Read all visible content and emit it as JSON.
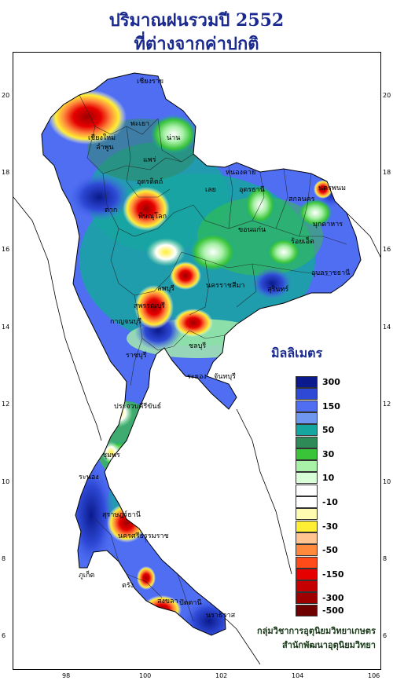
{
  "title": {
    "line1": "ปริมาณฝนรวมปี  2552",
    "line2": "ที่ต่างจากค่าปกติ"
  },
  "axes": {
    "top_ticks": [
      "98",
      "100",
      "102",
      "104",
      "106"
    ],
    "left_ticks": [
      "20",
      "18",
      "16",
      "14",
      "12",
      "10",
      "8",
      "6"
    ],
    "right_ticks": [
      "20",
      "18",
      "16",
      "14",
      "12",
      "10",
      "8",
      "6"
    ]
  },
  "legend": {
    "title": "มิลลิเมตร",
    "items": [
      {
        "label": "300",
        "color": "#0b1a8c"
      },
      {
        "label": "",
        "color": "#2e49d6"
      },
      {
        "label": "150",
        "color": "#4f6ef2"
      },
      {
        "label": "",
        "color": "#6f97f0"
      },
      {
        "label": "50",
        "color": "#16a6a0"
      },
      {
        "label": "",
        "color": "#2e8b57"
      },
      {
        "label": "30",
        "color": "#39c43a"
      },
      {
        "label": "",
        "color": "#a9f0a9"
      },
      {
        "label": "10",
        "color": "#d9ffd9"
      },
      {
        "label": "",
        "color": "#ffffff"
      },
      {
        "label": "-10",
        "color": "#ffffff"
      },
      {
        "label": "",
        "color": "#fffbb0"
      },
      {
        "label": "-30",
        "color": "#ffee33"
      },
      {
        "label": "",
        "color": "#ffc490"
      },
      {
        "label": "-50",
        "color": "#ff8a3d"
      },
      {
        "label": "",
        "color": "#ff4a1a"
      },
      {
        "label": "-150",
        "color": "#e60000"
      },
      {
        "label": "",
        "color": "#c40000"
      },
      {
        "label": "-300",
        "color": "#9e0000"
      },
      {
        "label": "-500",
        "color": "#6e0000"
      }
    ]
  },
  "places": [
    {
      "name": "เชียงราย",
      "text": "เชียงราย"
    },
    {
      "name": "เชียงใหม่",
      "text": "เชียงใหม่"
    },
    {
      "name": "น่าน",
      "text": "น่าน"
    },
    {
      "name": "พะเยา",
      "text": "พะเยา"
    },
    {
      "name": "แพร่",
      "text": "แพร่"
    },
    {
      "name": "ลำพูน",
      "text": "ลำพูน"
    },
    {
      "name": "อุตรดิตถ์",
      "text": "อุตรดิตถ์"
    },
    {
      "name": "ตาก",
      "text": "ตาก"
    },
    {
      "name": "พิษณุโลก",
      "text": "พิษณุโลก"
    },
    {
      "name": "หนองคาย",
      "text": "หนองคาย"
    },
    {
      "name": "เลย",
      "text": "เลย"
    },
    {
      "name": "อุดรธานี",
      "text": "อุดรธานี"
    },
    {
      "name": "นครพนม",
      "text": "นครพนม"
    },
    {
      "name": "สกลนคร",
      "text": "สกลนคร"
    },
    {
      "name": "มุกดาหาร",
      "text": "มุกดาหาร"
    },
    {
      "name": "ขอนแก่น",
      "text": "ขอนแก่น"
    },
    {
      "name": "ร้อยเอ็ด",
      "text": "ร้อยเอ็ด"
    },
    {
      "name": "อุบลราชธานี",
      "text": "อุบลราชธานี"
    },
    {
      "name": "นครราชสีมา",
      "text": "นครราชสีมา"
    },
    {
      "name": "สุรินทร์",
      "text": "สุรินทร์"
    },
    {
      "name": "ลพบุรี",
      "text": "ลพบุรี"
    },
    {
      "name": "สุพรรณบุรี",
      "text": "สุพรรณบุรี"
    },
    {
      "name": "กาญจนบุรี",
      "text": "กาญจนบุรี"
    },
    {
      "name": "ราชบุรี",
      "text": "ราชบุรี"
    },
    {
      "name": "ชลบุรี",
      "text": "ชลบุรี"
    },
    {
      "name": "ระยอง",
      "text": "ระยอง"
    },
    {
      "name": "จันทบุรี",
      "text": "จันทบุรี"
    },
    {
      "name": "ประจวบคีรีขันธ์",
      "text": "ประจวบคีรีขันธ์"
    },
    {
      "name": "ชุมพร",
      "text": "ชุมพร"
    },
    {
      "name": "ระนอง",
      "text": "ระนอง"
    },
    {
      "name": "สุราษฎร์ธานี",
      "text": "สุราษฎร์ธานี"
    },
    {
      "name": "นครศรีธรรมราช",
      "text": "นครศรีธรรมราช"
    },
    {
      "name": "ภูเก็ต",
      "text": "ภูเก็ต"
    },
    {
      "name": "ตรัง",
      "text": "ตรัง"
    },
    {
      "name": "สงขลา",
      "text": "สงขลา"
    },
    {
      "name": "ปัตตานี",
      "text": "ปัตตานี"
    },
    {
      "name": "นราธิวาส",
      "text": "นราธิวาส"
    }
  ],
  "footer": {
    "line1": "กลุ่มวิชาการอุตุนิยมวิทยาเกษตร",
    "line2": "สำนักพัฒนาอุตุนิยมวิทยา"
  }
}
